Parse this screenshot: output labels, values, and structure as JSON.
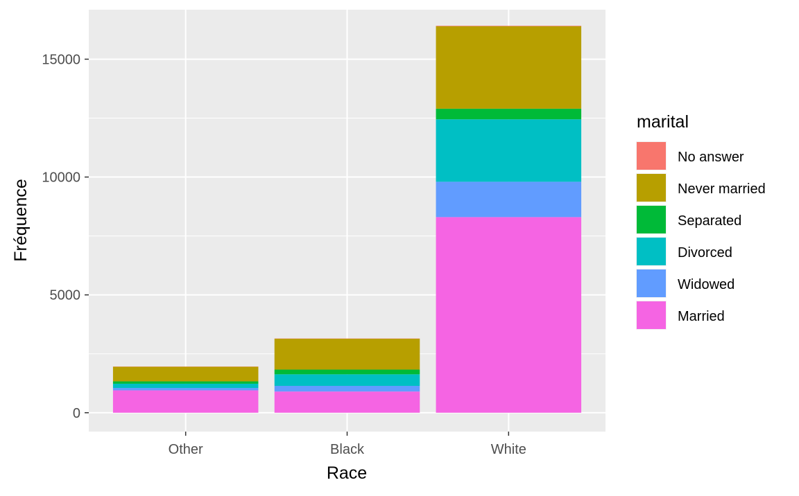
{
  "chart_data": {
    "type": "bar",
    "stacked": true,
    "xlabel": "Race",
    "ylabel": "Fréquence",
    "categories": [
      "Other",
      "Black",
      "White"
    ],
    "ylim": [
      -800,
      17100
    ],
    "y_ticks": [
      0,
      5000,
      10000,
      15000
    ],
    "grid": true,
    "legend": {
      "title": "marital",
      "position": "right",
      "entries": [
        "No answer",
        "Never married",
        "Separated",
        "Divorced",
        "Widowed",
        "Married"
      ]
    },
    "series": [
      {
        "name": "Married",
        "color": "#F564E3",
        "values": [
          950,
          900,
          8300
        ]
      },
      {
        "name": "Widowed",
        "color": "#619CFF",
        "values": [
          100,
          240,
          1500
        ]
      },
      {
        "name": "Divorced",
        "color": "#00BFC4",
        "values": [
          180,
          490,
          2650
        ]
      },
      {
        "name": "Separated",
        "color": "#00BA38",
        "values": [
          100,
          200,
          450
        ]
      },
      {
        "name": "Never married",
        "color": "#B79F00",
        "values": [
          620,
          1310,
          3500
        ]
      },
      {
        "name": "No answer",
        "color": "#F8766D",
        "values": [
          10,
          10,
          20
        ]
      }
    ]
  }
}
